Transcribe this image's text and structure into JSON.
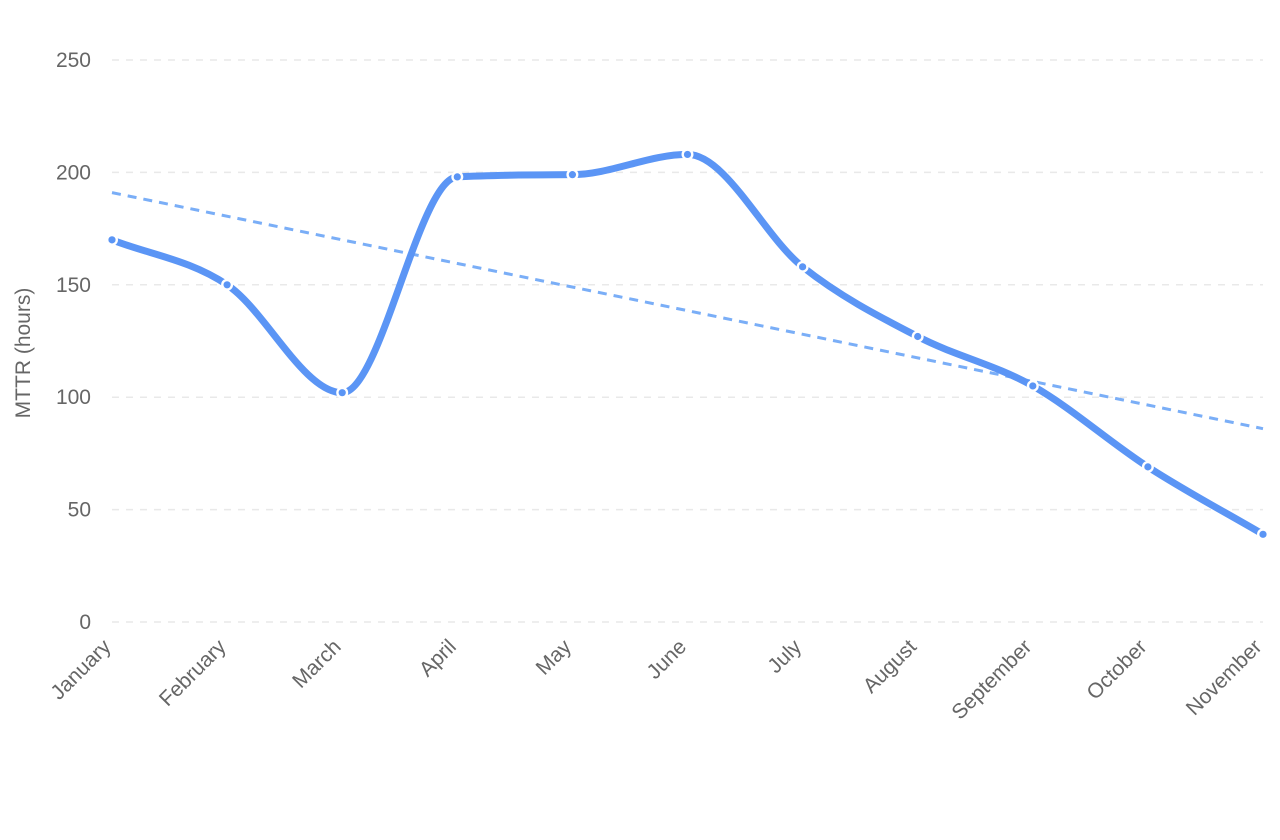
{
  "chart_data": {
    "type": "line",
    "title": "",
    "xlabel": "",
    "ylabel": "MTTR (hours)",
    "categories": [
      "January",
      "February",
      "March",
      "April",
      "May",
      "June",
      "July",
      "August",
      "September",
      "October",
      "November"
    ],
    "series": [
      {
        "values": [
          170,
          150,
          102,
          198,
          199,
          208,
          158,
          127,
          105,
          69,
          39
        ],
        "color": "#5b95f5",
        "smooth": true,
        "markers": true
      }
    ],
    "trendline": {
      "start": 191,
      "end": 86,
      "color": "#7aaef7",
      "style": "dashed"
    },
    "ylim": [
      0,
      250
    ],
    "yticks": [
      0,
      50,
      100,
      150,
      200,
      250
    ],
    "grid": true,
    "legend": "none"
  }
}
